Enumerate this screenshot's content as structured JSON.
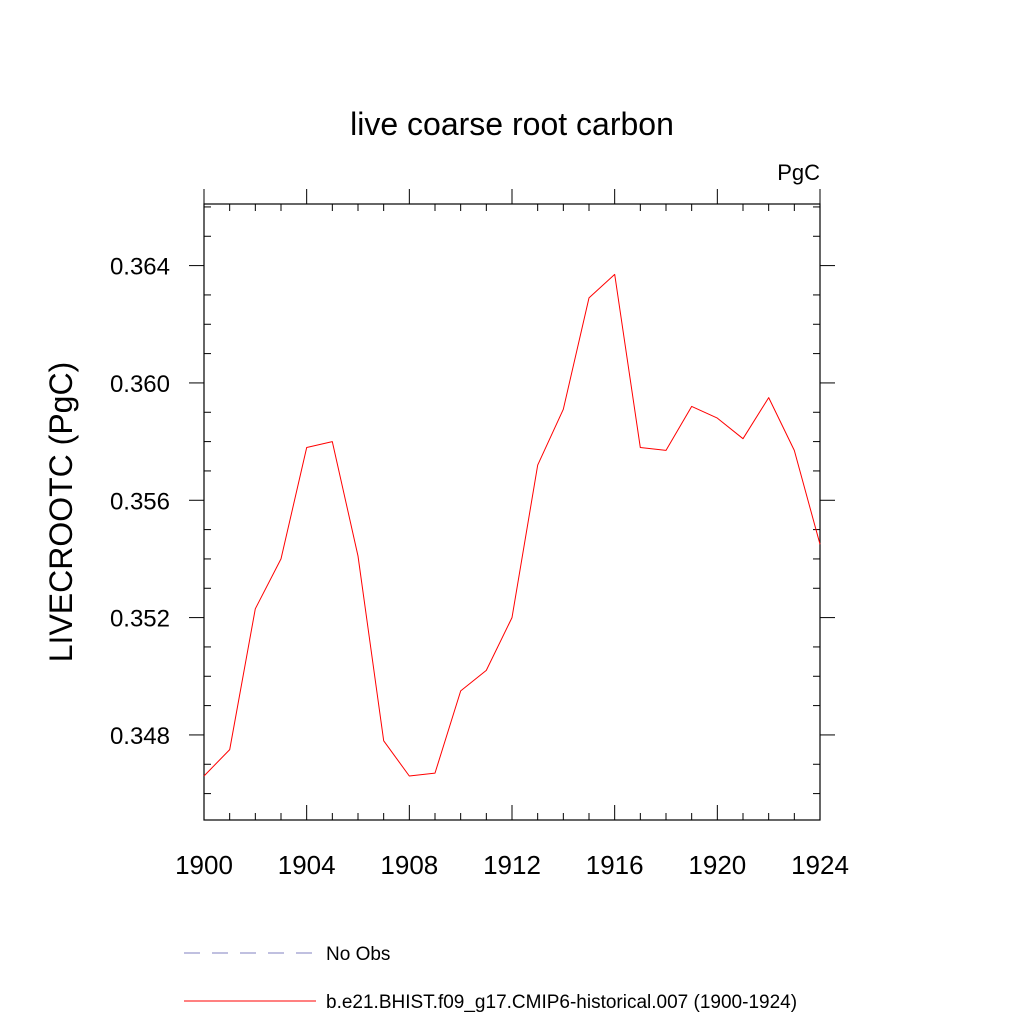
{
  "chart_data": {
    "type": "line",
    "title": "live coarse root carbon",
    "units_label": "PgC",
    "xlabel": "",
    "ylabel": "LIVECROOTC  (PgC)",
    "xlim": [
      1900,
      1924
    ],
    "ylim": [
      0.3451,
      0.3661
    ],
    "x_ticks": [
      1900,
      1904,
      1908,
      1912,
      1916,
      1920,
      1924
    ],
    "y_ticks": [
      0.348,
      0.352,
      0.356,
      0.36,
      0.364
    ],
    "x_tick_labels": [
      "1900",
      "1904",
      "1908",
      "1912",
      "1916",
      "1920",
      "1924"
    ],
    "y_tick_labels": [
      "0.348",
      "0.352",
      "0.356",
      "0.360",
      "0.364"
    ],
    "series": [
      {
        "name": "b.e21.BHIST.f09_g17.CMIP6-historical.007 (1900-1924)",
        "color": "#ff0000",
        "style": "solid",
        "x": [
          1900,
          1901,
          1902,
          1903,
          1904,
          1905,
          1906,
          1907,
          1908,
          1909,
          1910,
          1911,
          1912,
          1913,
          1914,
          1915,
          1916,
          1917,
          1918,
          1919,
          1920,
          1921,
          1922,
          1923,
          1924
        ],
        "values": [
          0.3466,
          0.3475,
          0.3523,
          0.354,
          0.3578,
          0.358,
          0.3541,
          0.3478,
          0.3466,
          0.3467,
          0.3495,
          0.3502,
          0.352,
          0.3572,
          0.3591,
          0.3629,
          0.3637,
          0.3578,
          0.3577,
          0.3592,
          0.3588,
          0.3581,
          0.3595,
          0.3577,
          0.3545
        ]
      }
    ],
    "legend": [
      {
        "label": "No Obs",
        "color": "#8080c0",
        "style": "dashed"
      },
      {
        "label": "b.e21.BHIST.f09_g17.CMIP6-historical.007 (1900-1924)",
        "color": "#ff0000",
        "style": "solid"
      }
    ],
    "legend_position": "bottom",
    "grid": false
  }
}
